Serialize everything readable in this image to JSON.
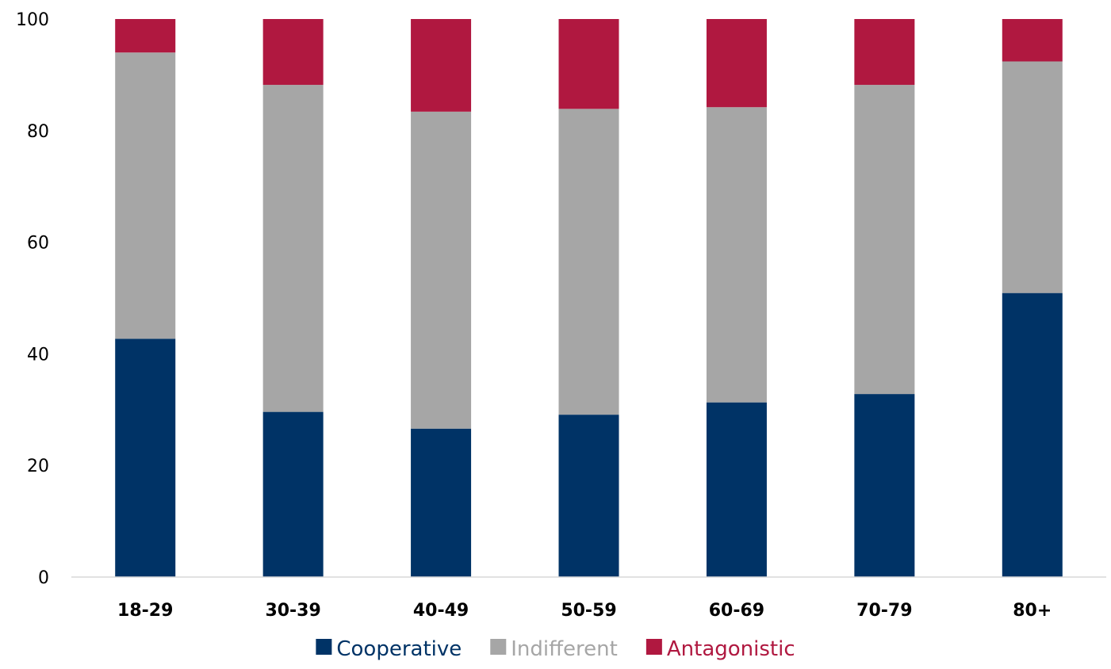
{
  "chart_data": {
    "type": "bar",
    "stacked": true,
    "categories": [
      "18-29",
      "30-39",
      "40-49",
      "50-59",
      "60-69",
      "70-79",
      "80+"
    ],
    "series": [
      {
        "name": "Cooperative",
        "color": "#003366",
        "values": [
          42.7,
          29.6,
          26.6,
          29.1,
          31.3,
          32.8,
          50.9
        ]
      },
      {
        "name": "Indifferent",
        "color": "#A6A6A6",
        "values": [
          51.3,
          58.6,
          56.8,
          54.8,
          52.9,
          55.4,
          41.5
        ]
      },
      {
        "name": "Antagonistic",
        "color": "#B01840",
        "values": [
          6.0,
          11.8,
          16.6,
          16.1,
          15.8,
          11.8,
          7.6
        ]
      }
    ],
    "title": "",
    "xlabel": "",
    "ylabel": "",
    "ylim": [
      0,
      100
    ],
    "yticks": [
      "0",
      "20",
      "40",
      "60",
      "80",
      "100"
    ],
    "grid": false,
    "legend": "bottom"
  }
}
